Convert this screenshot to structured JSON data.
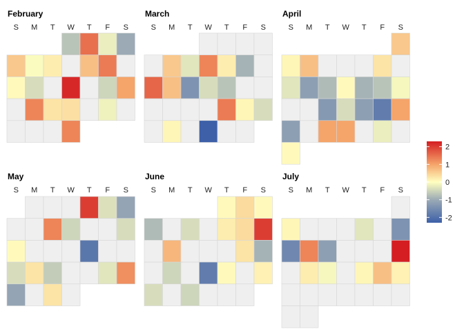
{
  "chart_data": {
    "type": "heatmap",
    "weekdays": [
      "S",
      "M",
      "T",
      "W",
      "T",
      "F",
      "S"
    ],
    "color_scale": {
      "min": -2.3,
      "max": 2.3,
      "stops": [
        {
          "v": -2.3,
          "color": "#3D60A8"
        },
        {
          "v": -1,
          "color": "#9BAAB5"
        },
        {
          "v": 0,
          "color": "#FFFFC0"
        },
        {
          "v": 1,
          "color": "#F5A46A"
        },
        {
          "v": 2.3,
          "color": "#D41E22"
        }
      ],
      "ticks": [
        2,
        1,
        0,
        -1,
        -2
      ],
      "tick_labels": [
        "2",
        "1",
        "0",
        "-1",
        "-2"
      ],
      "missing_color": "#EFEFEF"
    },
    "months": [
      {
        "name": "February",
        "first_weekday": 3,
        "values": [
          -0.7,
          1.5,
          -0.2,
          -1.0,
          0.6,
          -0.05,
          0.2,
          null,
          0.7,
          1.4,
          null,
          0.05,
          -0.4,
          null,
          2.2,
          null,
          -0.5,
          1.0,
          null,
          1.3,
          0.3,
          0.35,
          null,
          -0.15,
          null,
          null,
          null,
          null,
          1.3
        ]
      },
      {
        "name": "March",
        "first_weekday": 3,
        "values": [
          null,
          null,
          null,
          null,
          null,
          0.6,
          -0.3,
          1.3,
          0.2,
          -0.9,
          null,
          1.6,
          0.7,
          -1.4,
          -0.4,
          -0.7,
          null,
          null,
          null,
          null,
          null,
          null,
          1.4,
          0.1,
          -0.4,
          null,
          0.1,
          null,
          -2.3,
          null,
          null
        ]
      },
      {
        "name": "April",
        "first_weekday": 6,
        "values": [
          0.6,
          0.1,
          0.7,
          null,
          null,
          null,
          0.3,
          null,
          -0.3,
          -1.2,
          -0.8,
          0.05,
          -0.9,
          -0.7,
          -0.1,
          null,
          null,
          -1.3,
          -0.4,
          -1.2,
          -1.8,
          1.0,
          -1.2,
          null,
          1.0,
          1.0,
          null,
          -0.2,
          null,
          0.05
        ]
      },
      {
        "name": "May",
        "first_weekday": 1,
        "values": [
          null,
          null,
          null,
          2.0,
          -0.35,
          -1.1,
          null,
          null,
          1.3,
          -0.5,
          null,
          null,
          -0.4,
          0.05,
          null,
          null,
          null,
          -1.9,
          null,
          null,
          -0.4,
          0.3,
          -0.6,
          null,
          null,
          -0.3,
          1.2,
          -1.1,
          null,
          0.3,
          null
        ]
      },
      {
        "name": "June",
        "first_weekday": 4,
        "values": [
          0.05,
          0.4,
          0.05,
          -0.8,
          null,
          -0.4,
          null,
          0.2,
          0.4,
          2.0,
          null,
          0.8,
          null,
          null,
          null,
          0.3,
          -0.9,
          null,
          -0.5,
          null,
          -1.8,
          0.05,
          null,
          0.15,
          -0.4,
          null,
          -0.5,
          null,
          null,
          null
        ]
      },
      {
        "name": "July",
        "first_weekday": 6,
        "values": [
          null,
          0.1,
          null,
          null,
          null,
          -0.3,
          null,
          -1.4,
          -1.6,
          1.3,
          -1.2,
          null,
          null,
          null,
          2.3,
          null,
          0.2,
          -0.1,
          null,
          0.1,
          0.7,
          0.15,
          null,
          null,
          null,
          null,
          null,
          null,
          null,
          null,
          null
        ]
      }
    ]
  }
}
